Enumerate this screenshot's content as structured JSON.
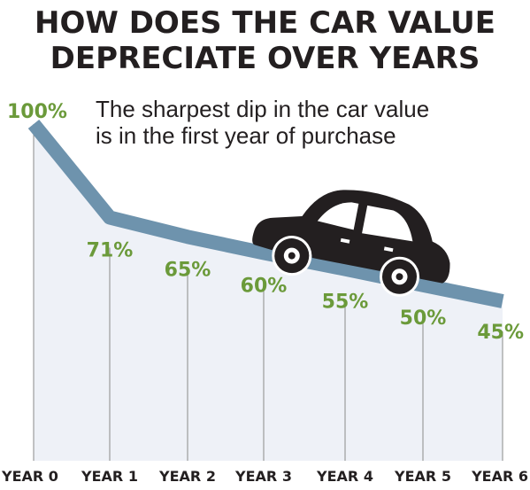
{
  "chart_data": {
    "type": "area",
    "title": [
      "HOW DOES THE CAR VALUE",
      "DEPRECIATE OVER YEARS"
    ],
    "subtitle": [
      "The sharpest dip in the car value",
      "is in the first year of purchase"
    ],
    "categories": [
      "YEAR 0",
      "YEAR 1",
      "YEAR 2",
      "YEAR 3",
      "YEAR 4",
      "YEAR 5",
      "YEAR 6"
    ],
    "values": [
      100,
      71,
      65,
      60,
      55,
      50,
      45
    ],
    "data_labels": [
      "100%",
      "71%",
      "65%",
      "60%",
      "55%",
      "50%",
      "45%"
    ],
    "unit": "%",
    "grid": false,
    "legend": "none"
  },
  "colors": {
    "line": "#6e93ad",
    "area": "#eef1f7",
    "labels": "#6b9a3a",
    "text": "#231f20",
    "gridlines": "#8a8a8a"
  },
  "decoration": {
    "icon": "car-icon"
  }
}
